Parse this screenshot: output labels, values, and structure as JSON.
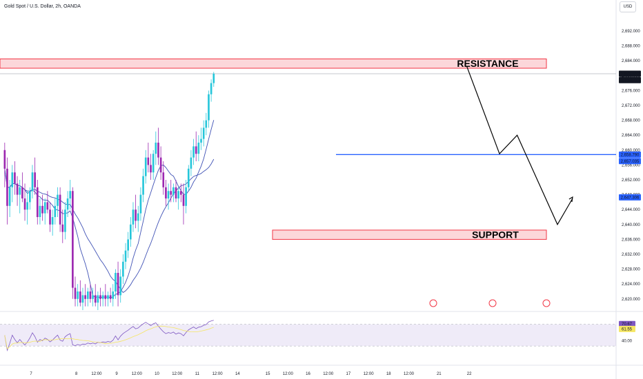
{
  "header": {
    "title": "Gold Spot / U.S. Dollar, 2h, OANDA",
    "currency": "USD"
  },
  "chart_data": {
    "type": "candlestick",
    "title": "Gold Spot / U.S. Dollar, 2h, OANDA",
    "ylim": [
      2617,
      2697
    ],
    "y_ticks": [
      2620,
      2624,
      2628,
      2632,
      2636,
      2640,
      2644,
      2648,
      2652,
      2656,
      2660,
      2664,
      2668,
      2672,
      2676,
      2680,
      2684,
      2688,
      2692
    ],
    "y_tick_labels": [
      "2,620.000",
      "2,624.000",
      "2,628.000",
      "2,632.000",
      "2,636.000",
      "2,640.000",
      "2,644.000",
      "2,648.000",
      "2,652.000",
      "2,656.000",
      "2,660.000",
      "2,664.000",
      "2,668.000",
      "2,672.000",
      "2,676.000",
      "2,680.000",
      "2,684.000",
      "2,688.000",
      "2,692.000"
    ],
    "x_ticks": [
      "7",
      "8",
      "12:00",
      "9",
      "12:00",
      "10",
      "12:00",
      "11",
      "12:00",
      "14",
      "15",
      "12:00",
      "16",
      "12:00",
      "17",
      "12:00",
      "18",
      "12:00",
      "21",
      "22"
    ],
    "x_tick_bars": [
      0,
      18,
      26,
      34,
      42,
      50,
      58,
      66,
      74,
      82,
      94,
      102,
      110,
      118,
      126,
      134,
      142,
      150,
      162,
      174
    ],
    "candles": [
      [
        2660,
        2662,
        2650,
        2655
      ],
      [
        2655,
        2658,
        2640,
        2645
      ],
      [
        2645,
        2652,
        2642,
        2650
      ],
      [
        2650,
        2656,
        2646,
        2654
      ],
      [
        2654,
        2657,
        2648,
        2651
      ],
      [
        2651,
        2653,
        2645,
        2648
      ],
      [
        2648,
        2652,
        2643,
        2650
      ],
      [
        2650,
        2654,
        2646,
        2647
      ],
      [
        2647,
        2651,
        2641,
        2644
      ],
      [
        2644,
        2649,
        2640,
        2646
      ],
      [
        2646,
        2650,
        2644,
        2649
      ],
      [
        2649,
        2656,
        2647,
        2654
      ],
      [
        2654,
        2658,
        2648,
        2650
      ],
      [
        2650,
        2652,
        2640,
        2642
      ],
      [
        2642,
        2647,
        2640,
        2645
      ],
      [
        2645,
        2648,
        2641,
        2643
      ],
      [
        2643,
        2647,
        2640,
        2646
      ],
      [
        2646,
        2649,
        2643,
        2644
      ],
      [
        2644,
        2646,
        2638,
        2640
      ],
      [
        2640,
        2644,
        2637,
        2642
      ],
      [
        2642,
        2647,
        2640,
        2645
      ],
      [
        2645,
        2650,
        2642,
        2648
      ],
      [
        2648,
        2650,
        2638,
        2640
      ],
      [
        2640,
        2644,
        2635,
        2638
      ],
      [
        2638,
        2646,
        2636,
        2644
      ],
      [
        2644,
        2649,
        2642,
        2647
      ],
      [
        2647,
        2652,
        2644,
        2649
      ],
      [
        2649,
        2650,
        2620,
        2623
      ],
      [
        2623,
        2626,
        2618,
        2620
      ],
      [
        2620,
        2624,
        2618,
        2622
      ],
      [
        2622,
        2625,
        2618,
        2619
      ],
      [
        2619,
        2623,
        2617,
        2621
      ],
      [
        2621,
        2624,
        2618,
        2620
      ],
      [
        2620,
        2623,
        2618,
        2622
      ],
      [
        2622,
        2624,
        2619,
        2620
      ],
      [
        2620,
        2623,
        2618,
        2621
      ],
      [
        2621,
        2624,
        2618,
        2619
      ],
      [
        2619,
        2622,
        2617,
        2621
      ],
      [
        2621,
        2623,
        2618,
        2620
      ],
      [
        2620,
        2622,
        2618,
        2621
      ],
      [
        2621,
        2624,
        2618,
        2620
      ],
      [
        2620,
        2622,
        2618,
        2621
      ],
      [
        2621,
        2623,
        2619,
        2620
      ],
      [
        2620,
        2624,
        2618,
        2622
      ],
      [
        2622,
        2628,
        2620,
        2627
      ],
      [
        2627,
        2630,
        2618,
        2621
      ],
      [
        2621,
        2628,
        2619,
        2626
      ],
      [
        2626,
        2632,
        2624,
        2630
      ],
      [
        2630,
        2635,
        2628,
        2633
      ],
      [
        2633,
        2638,
        2631,
        2636
      ],
      [
        2636,
        2642,
        2634,
        2640
      ],
      [
        2640,
        2646,
        2638,
        2644
      ],
      [
        2644,
        2648,
        2639,
        2641
      ],
      [
        2641,
        2645,
        2638,
        2643
      ],
      [
        2643,
        2650,
        2641,
        2648
      ],
      [
        2648,
        2655,
        2646,
        2653
      ],
      [
        2653,
        2660,
        2651,
        2658
      ],
      [
        2658,
        2662,
        2654,
        2656
      ],
      [
        2656,
        2659,
        2652,
        2654
      ],
      [
        2654,
        2660,
        2652,
        2659
      ],
      [
        2659,
        2665,
        2656,
        2662
      ],
      [
        2662,
        2666,
        2656,
        2658
      ],
      [
        2658,
        2661,
        2652,
        2654
      ],
      [
        2654,
        2657,
        2648,
        2650
      ],
      [
        2650,
        2652,
        2645,
        2647
      ],
      [
        2647,
        2651,
        2644,
        2649
      ],
      [
        2649,
        2652,
        2646,
        2648
      ],
      [
        2648,
        2651,
        2646,
        2650
      ],
      [
        2650,
        2652,
        2646,
        2647
      ],
      [
        2647,
        2650,
        2644,
        2649
      ],
      [
        2649,
        2651,
        2646,
        2648
      ],
      [
        2648,
        2651,
        2640,
        2645
      ],
      [
        2645,
        2652,
        2643,
        2650
      ],
      [
        2650,
        2656,
        2649,
        2655
      ],
      [
        2655,
        2660,
        2653,
        2658
      ],
      [
        2658,
        2663,
        2656,
        2661
      ],
      [
        2661,
        2665,
        2657,
        2659
      ],
      [
        2659,
        2664,
        2657,
        2662
      ],
      [
        2662,
        2666,
        2660,
        2663
      ],
      [
        2663,
        2668,
        2661,
        2666
      ],
      [
        2666,
        2670,
        2664,
        2668
      ],
      [
        2668,
        2676,
        2666,
        2675
      ],
      [
        2675,
        2679,
        2673,
        2678
      ],
      [
        2678,
        2681,
        2677,
        2680.52
      ]
    ],
    "annotations": {
      "resistance_label": "RESISTANCE",
      "resistance_zone": [
        2682,
        2684.5
      ],
      "support_label": "SUPPORT",
      "support_zone": [
        2636,
        2638.5
      ],
      "horizontal_line": 2658.79,
      "price_labels": [
        {
          "text": "2,680.520",
          "value": 2680.52,
          "color": "#131722"
        },
        {
          "text": "01:56:45",
          "value": 2678.8,
          "color": "#131722"
        },
        {
          "text": "2,658.790",
          "value": 2658.79,
          "color": "#2962ff"
        },
        {
          "text": "2,657.035",
          "value": 2657.035,
          "color": "#2962ff"
        },
        {
          "text": "2,647.306",
          "value": 2647.306,
          "color": "#2962ff"
        }
      ],
      "projection_path": [
        [
          2682.5,
          184
        ],
        [
          2659,
          197
        ],
        [
          2664,
          204
        ],
        [
          2640,
          220
        ],
        [
          2647,
          226
        ]
      ]
    },
    "rsi": {
      "range": [
        20,
        90
      ],
      "labels": [
        {
          "text": "70.67",
          "value": 70.67
        },
        {
          "text": "61.55",
          "value": 61.55
        },
        {
          "text": "40.00",
          "value": 40
        }
      ]
    }
  },
  "colors": {
    "bull": "#26c6da",
    "bear": "#9c27b0",
    "ma": "#3f51b5",
    "resistance": "#f23645",
    "support": "#f23645",
    "line": "#2962ff",
    "rsi": "#7e57c2",
    "rsi_ma": "#f5e663"
  }
}
